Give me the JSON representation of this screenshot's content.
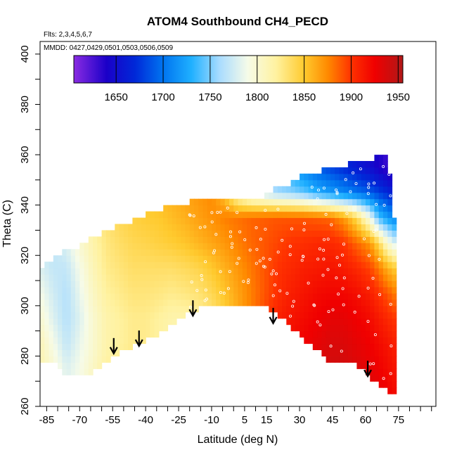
{
  "chart_data": {
    "type": "heatmap",
    "title": "ATOM4 Southbound CH4_PECD",
    "flights_label": "Flts: 2,3,4,5,6,7",
    "dates_label": "MMDD: 0427,0429,0501,0503,0506,0509",
    "xlabel": "Latitude (deg N)",
    "ylabel": "Theta (C)",
    "xlim": [
      -88,
      92
    ],
    "ylim": [
      260,
      405
    ],
    "x_ticks": [
      -85,
      -80,
      -75,
      -70,
      -65,
      -60,
      -55,
      -50,
      -45,
      -40,
      -35,
      -30,
      -25,
      -20,
      -15,
      -10,
      -5,
      0,
      5,
      10,
      15,
      20,
      25,
      30,
      35,
      40,
      45,
      50,
      55,
      60,
      65,
      70,
      75,
      80,
      85,
      90
    ],
    "x_tick_labels": [
      "-85",
      "-70",
      "-55",
      "-40",
      "-25",
      "-10",
      "5",
      "15",
      "30",
      "45",
      "60",
      "75"
    ],
    "x_tick_label_values": [
      -85,
      -70,
      -55,
      -40,
      -25,
      -10,
      5,
      15,
      30,
      45,
      60,
      75
    ],
    "y_ticks": [
      260,
      270,
      280,
      290,
      300,
      310,
      320,
      330,
      340,
      350,
      360,
      370,
      380,
      390,
      400
    ],
    "y_tick_labels": [
      "260",
      "280",
      "300",
      "320",
      "340",
      "360",
      "380",
      "400"
    ],
    "y_tick_label_values": [
      260,
      280,
      300,
      320,
      340,
      360,
      380,
      400
    ],
    "colorbar": {
      "range": [
        1605,
        1955
      ],
      "tick_labels": [
        "1650",
        "1700",
        "1750",
        "1800",
        "1850",
        "1900",
        "1950"
      ],
      "tick_values": [
        1650,
        1700,
        1750,
        1800,
        1850,
        1900,
        1950
      ],
      "stops": [
        {
          "value": 1605,
          "color": "#8a2be2"
        },
        {
          "value": 1640,
          "color": "#1a00c8"
        },
        {
          "value": 1670,
          "color": "#0028d8"
        },
        {
          "value": 1700,
          "color": "#0074f0"
        },
        {
          "value": 1730,
          "color": "#1fb0ff"
        },
        {
          "value": 1760,
          "color": "#a9dcff"
        },
        {
          "value": 1790,
          "color": "#f6fbe8"
        },
        {
          "value": 1820,
          "color": "#fff2a0"
        },
        {
          "value": 1850,
          "color": "#ffca2e"
        },
        {
          "value": 1875,
          "color": "#ff8a00"
        },
        {
          "value": 1900,
          "color": "#ff3200"
        },
        {
          "value": 1925,
          "color": "#f00000"
        },
        {
          "value": 1955,
          "color": "#b01818"
        }
      ]
    },
    "domain_lat": [
      -88,
      -82,
      -76,
      -70,
      -64,
      -58,
      -52,
      -46,
      -40,
      -34,
      -28,
      -22,
      -16,
      -10,
      -4,
      2,
      8,
      14,
      20,
      26,
      32,
      38,
      44,
      50,
      56,
      62,
      66,
      70,
      73
    ],
    "domain_theta_bottom": [
      279,
      277,
      273,
      272,
      274,
      278,
      281,
      284,
      286,
      289,
      292,
      296,
      299,
      301,
      300,
      299,
      299,
      300,
      297,
      292,
      286,
      282,
      278,
      278,
      277,
      272,
      268,
      266,
      264
    ],
    "domain_theta_top": [
      315,
      319,
      322,
      324,
      327,
      330,
      332,
      334,
      336,
      338,
      340,
      341,
      342,
      342,
      342,
      342,
      342,
      344,
      347,
      349,
      352,
      353,
      355,
      356,
      357,
      358,
      359,
      360,
      336
    ],
    "field_theta_levels": [
      265,
      275,
      285,
      295,
      305,
      315,
      325,
      335,
      345,
      355
    ],
    "field_ch4": [
      [
        1820,
        1800,
        1780,
        1790,
        1810,
        1825,
        1830,
        1835,
        1835,
        1830,
        1820,
        1815,
        1815,
        1825,
        1840,
        1860,
        1880,
        1900,
        1920,
        1930,
        1935,
        1940,
        1945,
        1945,
        1940,
        1935,
        1930,
        1925,
        1920
      ],
      [
        1815,
        1800,
        1780,
        1790,
        1805,
        1820,
        1825,
        1830,
        1830,
        1825,
        1815,
        1810,
        1810,
        1820,
        1840,
        1860,
        1880,
        1900,
        1915,
        1925,
        1930,
        1935,
        1940,
        1940,
        1935,
        1930,
        1925,
        1920,
        1915
      ],
      [
        1810,
        1790,
        1770,
        1785,
        1800,
        1815,
        1820,
        1825,
        1825,
        1820,
        1812,
        1808,
        1810,
        1820,
        1840,
        1860,
        1880,
        1900,
        1912,
        1920,
        1925,
        1930,
        1935,
        1935,
        1930,
        1925,
        1920,
        1915,
        1910
      ],
      [
        1800,
        1780,
        1765,
        1780,
        1800,
        1815,
        1820,
        1825,
        1825,
        1820,
        1815,
        1815,
        1818,
        1828,
        1845,
        1862,
        1878,
        1895,
        1908,
        1915,
        1920,
        1925,
        1930,
        1930,
        1925,
        1920,
        1912,
        1905,
        1900
      ],
      [
        1790,
        1775,
        1765,
        1785,
        1805,
        1820,
        1825,
        1830,
        1830,
        1828,
        1825,
        1828,
        1832,
        1840,
        1852,
        1865,
        1878,
        1890,
        1902,
        1910,
        1915,
        1920,
        1922,
        1922,
        1918,
        1910,
        1900,
        1890,
        1880
      ],
      [
        1780,
        1770,
        1770,
        1790,
        1810,
        1825,
        1830,
        1835,
        1835,
        1835,
        1835,
        1838,
        1842,
        1850,
        1860,
        1870,
        1880,
        1890,
        1900,
        1905,
        1910,
        1912,
        1915,
        1912,
        1905,
        1895,
        1880,
        1860,
        1850
      ],
      [
        1770,
        1770,
        1780,
        1800,
        1815,
        1828,
        1835,
        1840,
        1842,
        1845,
        1848,
        1852,
        1858,
        1864,
        1870,
        1878,
        1885,
        1890,
        1895,
        1900,
        1902,
        1905,
        1905,
        1900,
        1885,
        1870,
        1840,
        1800,
        1780
      ],
      [
        1770,
        1775,
        1790,
        1805,
        1820,
        1832,
        1840,
        1845,
        1848,
        1850,
        1855,
        1860,
        1866,
        1872,
        1878,
        1882,
        1886,
        1888,
        1890,
        1890,
        1890,
        1888,
        1885,
        1870,
        1840,
        1790,
        1740,
        1720,
        1710
      ],
      [
        1780,
        1790,
        1800,
        1812,
        1825,
        1835,
        1842,
        1848,
        1852,
        1856,
        1860,
        1865,
        1870,
        1875,
        1850,
        1800,
        1780,
        1770,
        1760,
        1755,
        1745,
        1730,
        1720,
        1710,
        1700,
        1690,
        1680,
        1670,
        1660
      ],
      [
        1790,
        1800,
        1810,
        1820,
        1830,
        1840,
        1846,
        1850,
        1855,
        1860,
        1865,
        1870,
        1872,
        1870,
        1830,
        1780,
        1760,
        1750,
        1735,
        1720,
        1705,
        1690,
        1680,
        1670,
        1660,
        1650,
        1640,
        1630,
        1620
      ]
    ],
    "annotations": [
      {
        "type": "arrow",
        "lat": -54.5,
        "theta": 281
      },
      {
        "type": "arrow",
        "lat": -43,
        "theta": 284
      },
      {
        "type": "arrow",
        "lat": -18.5,
        "theta": 296
      },
      {
        "type": "arrow",
        "lat": 18,
        "theta": 293
      },
      {
        "type": "arrow",
        "lat": 61,
        "theta": 272
      }
    ]
  }
}
